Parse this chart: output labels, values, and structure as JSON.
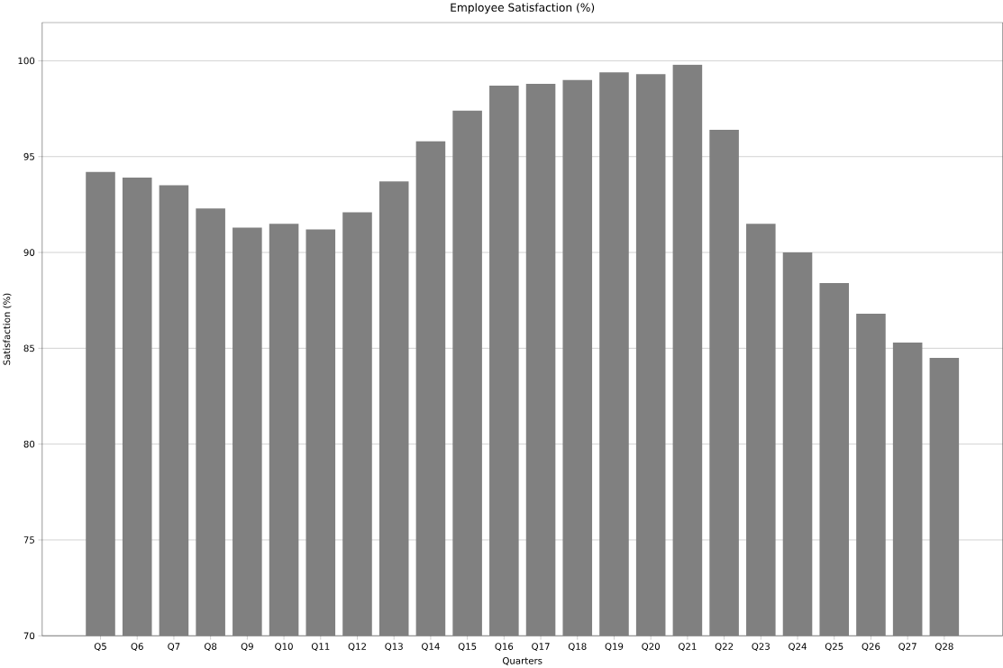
{
  "chart_data": {
    "type": "bar",
    "title": "Employee Satisfaction (%)",
    "xlabel": "Quarters",
    "ylabel": "Satisfaction (%)",
    "categories": [
      "Q5",
      "Q6",
      "Q7",
      "Q8",
      "Q9",
      "Q10",
      "Q11",
      "Q12",
      "Q13",
      "Q14",
      "Q15",
      "Q16",
      "Q17",
      "Q18",
      "Q19",
      "Q20",
      "Q21",
      "Q22",
      "Q23",
      "Q24",
      "Q25",
      "Q26",
      "Q27",
      "Q28"
    ],
    "values": [
      94.2,
      93.9,
      93.5,
      92.3,
      91.3,
      91.5,
      91.2,
      92.1,
      93.7,
      95.8,
      97.4,
      98.7,
      98.8,
      99.0,
      99.4,
      99.3,
      99.8,
      96.4,
      91.5,
      90.0,
      88.4,
      86.8,
      85.3,
      84.5
    ],
    "color": "#808080",
    "ylim": [
      70,
      102
    ],
    "yticks": [
      70,
      75,
      80,
      85,
      90,
      95,
      100
    ],
    "grid": "y"
  }
}
